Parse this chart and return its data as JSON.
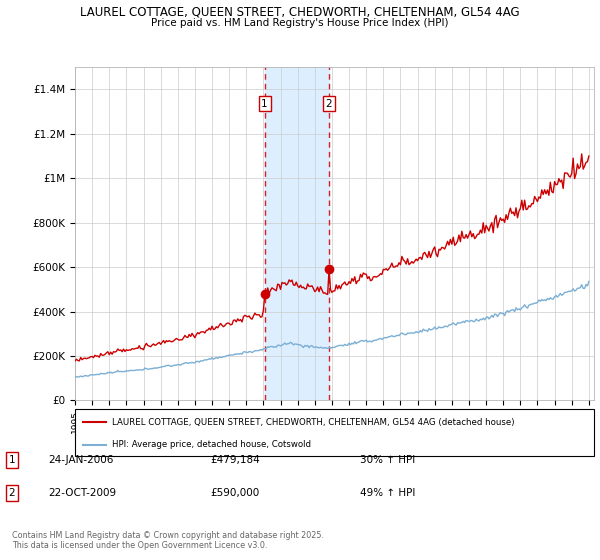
{
  "title1": "LAUREL COTTAGE, QUEEN STREET, CHEDWORTH, CHELTENHAM, GL54 4AG",
  "title2": "Price paid vs. HM Land Registry's House Price Index (HPI)",
  "legend_property": "LAUREL COTTAGE, QUEEN STREET, CHEDWORTH, CHELTENHAM, GL54 4AG (detached house)",
  "legend_hpi": "HPI: Average price, detached house, Cotswold",
  "footer": "Contains HM Land Registry data © Crown copyright and database right 2025.\nThis data is licensed under the Open Government Licence v3.0.",
  "property_color": "#cc0000",
  "hpi_color": "#7bafd4",
  "highlight_color": "#ddeeff",
  "vline_color": "#cc0000",
  "ylim": [
    0,
    1500000
  ],
  "yticks": [
    0,
    200000,
    400000,
    600000,
    800000,
    1000000,
    1200000,
    1400000
  ],
  "ytick_labels": [
    "£0",
    "£200K",
    "£400K",
    "£600K",
    "£800K",
    "£1M",
    "£1.2M",
    "£1.4M"
  ],
  "year_start": 1995,
  "year_end": 2025,
  "transaction1_year": 2006.07,
  "transaction2_year": 2009.81,
  "transaction1_price": 479184,
  "transaction2_price": 590000,
  "transaction1_date": "24-JAN-2006",
  "transaction2_date": "22-OCT-2009",
  "transaction1_hpi": "30% ↑ HPI",
  "transaction2_hpi": "49% ↑ HPI"
}
